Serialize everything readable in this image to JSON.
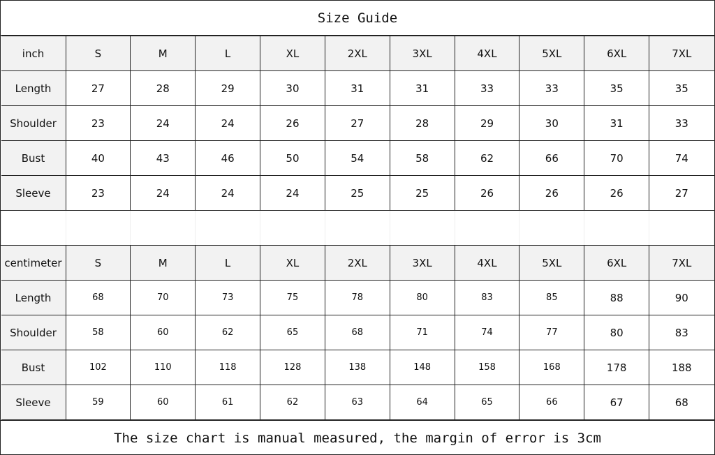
{
  "title": "Size Guide",
  "sizes": [
    "S",
    "M",
    "L",
    "XL",
    "2XL",
    "3XL",
    "4XL",
    "5XL",
    "6XL",
    "7XL"
  ],
  "inch": {
    "unit_label": "inch",
    "rows": [
      {
        "label": "Length",
        "values": [
          "27",
          "28",
          "29",
          "30",
          "31",
          "31",
          "33",
          "33",
          "35",
          "35"
        ]
      },
      {
        "label": "Shoulder",
        "values": [
          "23",
          "24",
          "24",
          "26",
          "27",
          "28",
          "29",
          "30",
          "31",
          "33"
        ]
      },
      {
        "label": "Bust",
        "values": [
          "40",
          "43",
          "46",
          "50",
          "54",
          "58",
          "62",
          "66",
          "70",
          "74"
        ]
      },
      {
        "label": "Sleeve",
        "values": [
          "23",
          "24",
          "24",
          "24",
          "25",
          "25",
          "26",
          "26",
          "26",
          "27"
        ]
      }
    ]
  },
  "cm": {
    "unit_label": "centimeter",
    "rows": [
      {
        "label": "Length",
        "values": [
          "68",
          "70",
          "73",
          "75",
          "78",
          "80",
          "83",
          "85",
          "88",
          "90"
        ]
      },
      {
        "label": "Shoulder",
        "values": [
          "58",
          "60",
          "62",
          "65",
          "68",
          "71",
          "74",
          "77",
          "80",
          "83"
        ]
      },
      {
        "label": "Bust",
        "values": [
          "102",
          "110",
          "118",
          "128",
          "138",
          "148",
          "158",
          "168",
          "178",
          "188"
        ]
      },
      {
        "label": "Sleeve",
        "values": [
          "59",
          "60",
          "61",
          "62",
          "63",
          "64",
          "65",
          "66",
          "67",
          "68"
        ]
      }
    ]
  },
  "footer": "The size chart is manual measured, the margin of error is 3cm"
}
